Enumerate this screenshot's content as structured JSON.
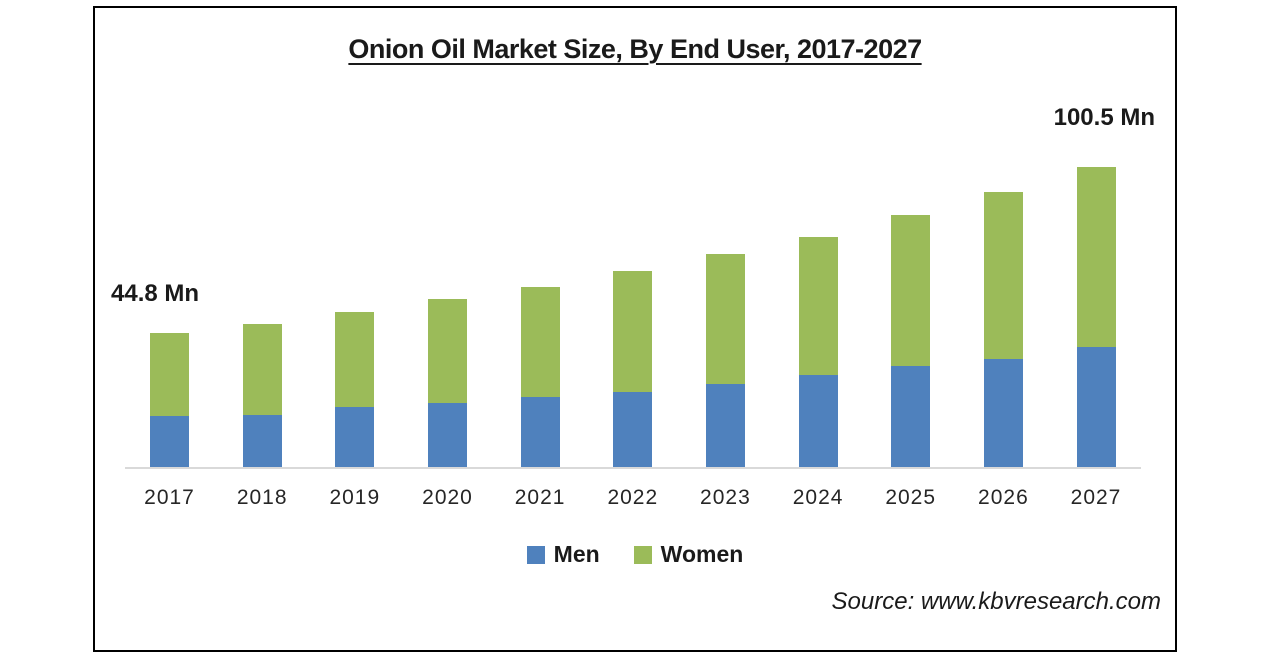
{
  "page": {
    "title": "Onion Oil Market Size, By End User, 2017-2027",
    "source": "Source: www.kbvresearch.com"
  },
  "annotations": {
    "first_year_total": "44.8 Mn",
    "last_year_total": "100.5 Mn"
  },
  "legend": {
    "items": [
      {
        "label": "Men",
        "color": "#4F81BD"
      },
      {
        "label": "Women",
        "color": "#9BBB59"
      }
    ]
  },
  "colors": {
    "men": "#4F81BD",
    "women": "#9BBB59",
    "axis_line": "#D9D9D9",
    "frame_border": "#000000",
    "text": "#1A1A1A"
  },
  "chart_data": {
    "type": "bar",
    "stacked": true,
    "title": "Onion Oil Market Size, By End User, 2017-2027",
    "unit": "Mn",
    "categories": [
      "2017",
      "2018",
      "2019",
      "2020",
      "2021",
      "2022",
      "2023",
      "2024",
      "2025",
      "2026",
      "2027"
    ],
    "series": [
      {
        "name": "Men",
        "color": "#4F81BD",
        "values": [
          17.0,
          17.6,
          20.0,
          21.6,
          23.4,
          25.2,
          27.8,
          30.7,
          33.7,
          36.2,
          40.2
        ]
      },
      {
        "name": "Women",
        "color": "#9BBB59",
        "values": [
          27.8,
          30.4,
          32.0,
          34.6,
          37.0,
          40.5,
          43.6,
          46.4,
          50.8,
          55.8,
          60.3
        ]
      }
    ],
    "totals": [
      44.8,
      48.0,
      52.0,
      56.2,
      60.4,
      65.7,
      71.4,
      77.1,
      84.5,
      92.0,
      100.5
    ],
    "annotations": [
      {
        "category": "2017",
        "text": "44.8 Mn"
      },
      {
        "category": "2027",
        "text": "100.5 Mn"
      }
    ],
    "xlabel": "",
    "ylabel": "",
    "ylim": [
      0,
      110
    ],
    "grid": false,
    "y_axis_visible": false,
    "legend_position": "bottom"
  }
}
